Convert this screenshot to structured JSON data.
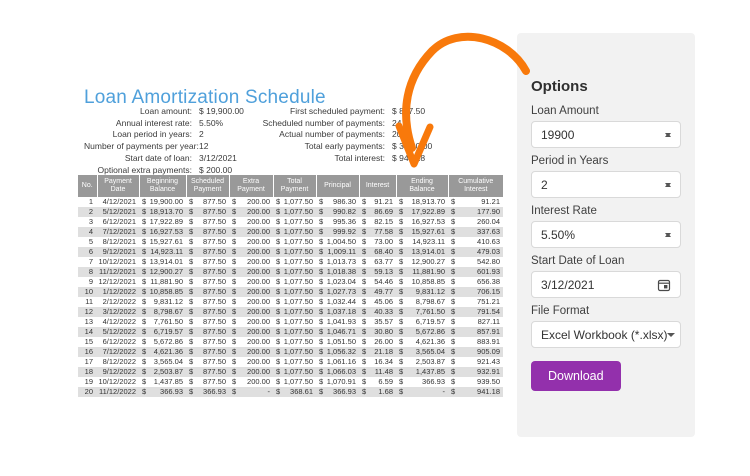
{
  "page": {
    "title": "Loan Amortization Schedule"
  },
  "summary": {
    "left": [
      {
        "label": "Loan amount:",
        "value": "$ 19,900.00"
      },
      {
        "label": "Annual interest rate:",
        "value": "5.50%"
      },
      {
        "label": "Loan period in years:",
        "value": "2"
      },
      {
        "label": "Number of payments per year:",
        "value": "12"
      },
      {
        "label": "Start date of loan:",
        "value": "3/12/2021"
      },
      {
        "label": "Optional extra payments:",
        "value": "$ 200.00"
      }
    ],
    "right": [
      {
        "label": "First scheduled payment:",
        "value": "$ 877.50"
      },
      {
        "label": "Scheduled number of payments:",
        "value": "24"
      },
      {
        "label": "Actual number of payments:",
        "value": "20"
      },
      {
        "label": "Total early payments:",
        "value": "$ 3,800.00"
      },
      {
        "label": "Total interest:",
        "value": "$ 941.18"
      }
    ]
  },
  "table": {
    "columns": [
      "No.",
      "Payment Date",
      "Beginning Balance",
      "Scheduled Payment",
      "Extra Payment",
      "Total Payment",
      "Principal",
      "Interest",
      "Ending Balance",
      "Cumulative Interest"
    ],
    "column_slugs": [
      "no",
      "payment-date",
      "beginning-balance",
      "scheduled-payment",
      "extra-payment",
      "total-payment",
      "principal",
      "interest",
      "ending-balance",
      "cumulative-interest"
    ],
    "rows": [
      {
        "no": "1",
        "date": "4/12/2021",
        "money": [
          "19,900.00",
          "877.50",
          "200.00",
          "1,077.50",
          "986.30",
          "91.21",
          "18,913.70",
          "91.21"
        ]
      },
      {
        "no": "2",
        "date": "5/12/2021",
        "money": [
          "18,913.70",
          "877.50",
          "200.00",
          "1,077.50",
          "990.82",
          "86.69",
          "17,922.89",
          "177.90"
        ]
      },
      {
        "no": "3",
        "date": "6/12/2021",
        "money": [
          "17,922.89",
          "877.50",
          "200.00",
          "1,077.50",
          "995.36",
          "82.15",
          "16,927.53",
          "260.04"
        ]
      },
      {
        "no": "4",
        "date": "7/12/2021",
        "money": [
          "16,927.53",
          "877.50",
          "200.00",
          "1,077.50",
          "999.92",
          "77.58",
          "15,927.61",
          "337.63"
        ]
      },
      {
        "no": "5",
        "date": "8/12/2021",
        "money": [
          "15,927.61",
          "877.50",
          "200.00",
          "1,077.50",
          "1,004.50",
          "73.00",
          "14,923.11",
          "410.63"
        ]
      },
      {
        "no": "6",
        "date": "9/12/2021",
        "money": [
          "14,923.11",
          "877.50",
          "200.00",
          "1,077.50",
          "1,009.11",
          "68.40",
          "13,914.01",
          "479.03"
        ]
      },
      {
        "no": "7",
        "date": "10/12/2021",
        "money": [
          "13,914.01",
          "877.50",
          "200.00",
          "1,077.50",
          "1,013.73",
          "63.77",
          "12,900.27",
          "542.80"
        ]
      },
      {
        "no": "8",
        "date": "11/12/2021",
        "money": [
          "12,900.27",
          "877.50",
          "200.00",
          "1,077.50",
          "1,018.38",
          "59.13",
          "11,881.90",
          "601.93"
        ]
      },
      {
        "no": "9",
        "date": "12/12/2021",
        "money": [
          "11,881.90",
          "877.50",
          "200.00",
          "1,077.50",
          "1,023.04",
          "54.46",
          "10,858.85",
          "656.38"
        ]
      },
      {
        "no": "10",
        "date": "1/12/2022",
        "money": [
          "10,858.85",
          "877.50",
          "200.00",
          "1,077.50",
          "1,027.73",
          "49.77",
          "9,831.12",
          "706.15"
        ]
      },
      {
        "no": "11",
        "date": "2/12/2022",
        "money": [
          "9,831.12",
          "877.50",
          "200.00",
          "1,077.50",
          "1,032.44",
          "45.06",
          "8,798.67",
          "751.21"
        ]
      },
      {
        "no": "12",
        "date": "3/12/2022",
        "money": [
          "8,798.67",
          "877.50",
          "200.00",
          "1,077.50",
          "1,037.18",
          "40.33",
          "7,761.50",
          "791.54"
        ]
      },
      {
        "no": "13",
        "date": "4/12/2022",
        "money": [
          "7,761.50",
          "877.50",
          "200.00",
          "1,077.50",
          "1,041.93",
          "35.57",
          "6,719.57",
          "827.11"
        ]
      },
      {
        "no": "14",
        "date": "5/12/2022",
        "money": [
          "6,719.57",
          "877.50",
          "200.00",
          "1,077.50",
          "1,046.71",
          "30.80",
          "5,672.86",
          "857.91"
        ]
      },
      {
        "no": "15",
        "date": "6/12/2022",
        "money": [
          "5,672.86",
          "877.50",
          "200.00",
          "1,077.50",
          "1,051.50",
          "26.00",
          "4,621.36",
          "883.91"
        ]
      },
      {
        "no": "16",
        "date": "7/12/2022",
        "money": [
          "4,621.36",
          "877.50",
          "200.00",
          "1,077.50",
          "1,056.32",
          "21.18",
          "3,565.04",
          "905.09"
        ]
      },
      {
        "no": "17",
        "date": "8/12/2022",
        "money": [
          "3,565.04",
          "877.50",
          "200.00",
          "1,077.50",
          "1,061.16",
          "16.34",
          "2,503.87",
          "921.43"
        ]
      },
      {
        "no": "18",
        "date": "9/12/2022",
        "money": [
          "2,503.87",
          "877.50",
          "200.00",
          "1,077.50",
          "1,066.03",
          "11.48",
          "1,437.85",
          "932.91"
        ]
      },
      {
        "no": "19",
        "date": "10/12/2022",
        "money": [
          "1,437.85",
          "877.50",
          "200.00",
          "1,077.50",
          "1,070.91",
          "6.59",
          "366.93",
          "939.50"
        ]
      },
      {
        "no": "20",
        "date": "11/12/2022",
        "money": [
          "366.93",
          "366.93",
          "-",
          "368.61",
          "366.93",
          "1.68",
          "-",
          "941.18"
        ]
      }
    ]
  },
  "options": {
    "title": "Options",
    "fields": [
      {
        "slug": "loan-amount",
        "label": "Loan Amount",
        "value": "19900",
        "type": "number-stepper"
      },
      {
        "slug": "period-in-years",
        "label": "Period in Years",
        "value": "2",
        "type": "number-stepper"
      },
      {
        "slug": "interest-rate",
        "label": "Interest Rate",
        "value": "5.50%",
        "type": "number-stepper"
      },
      {
        "slug": "start-date-of-loan",
        "label": "Start Date of Loan",
        "value": "3/12/2021",
        "type": "date"
      },
      {
        "slug": "file-format",
        "label": "File Format",
        "value": "Excel Workbook (*.xlsx)",
        "type": "select"
      }
    ],
    "download_label": "Download"
  },
  "icons": {
    "spinner_up": "triangle-up",
    "spinner_down": "triangle-down",
    "calendar": "calendar-outline",
    "dropdown_caret": "triangle-down"
  },
  "colors": {
    "title_blue": "#4FA0DB",
    "header_gray": "#999999",
    "row_stripe": "#DFDFDF",
    "panel_bg": "#F2F2F2",
    "accent_purple": "#9330AC",
    "arrow_orange": "#F8790B"
  }
}
